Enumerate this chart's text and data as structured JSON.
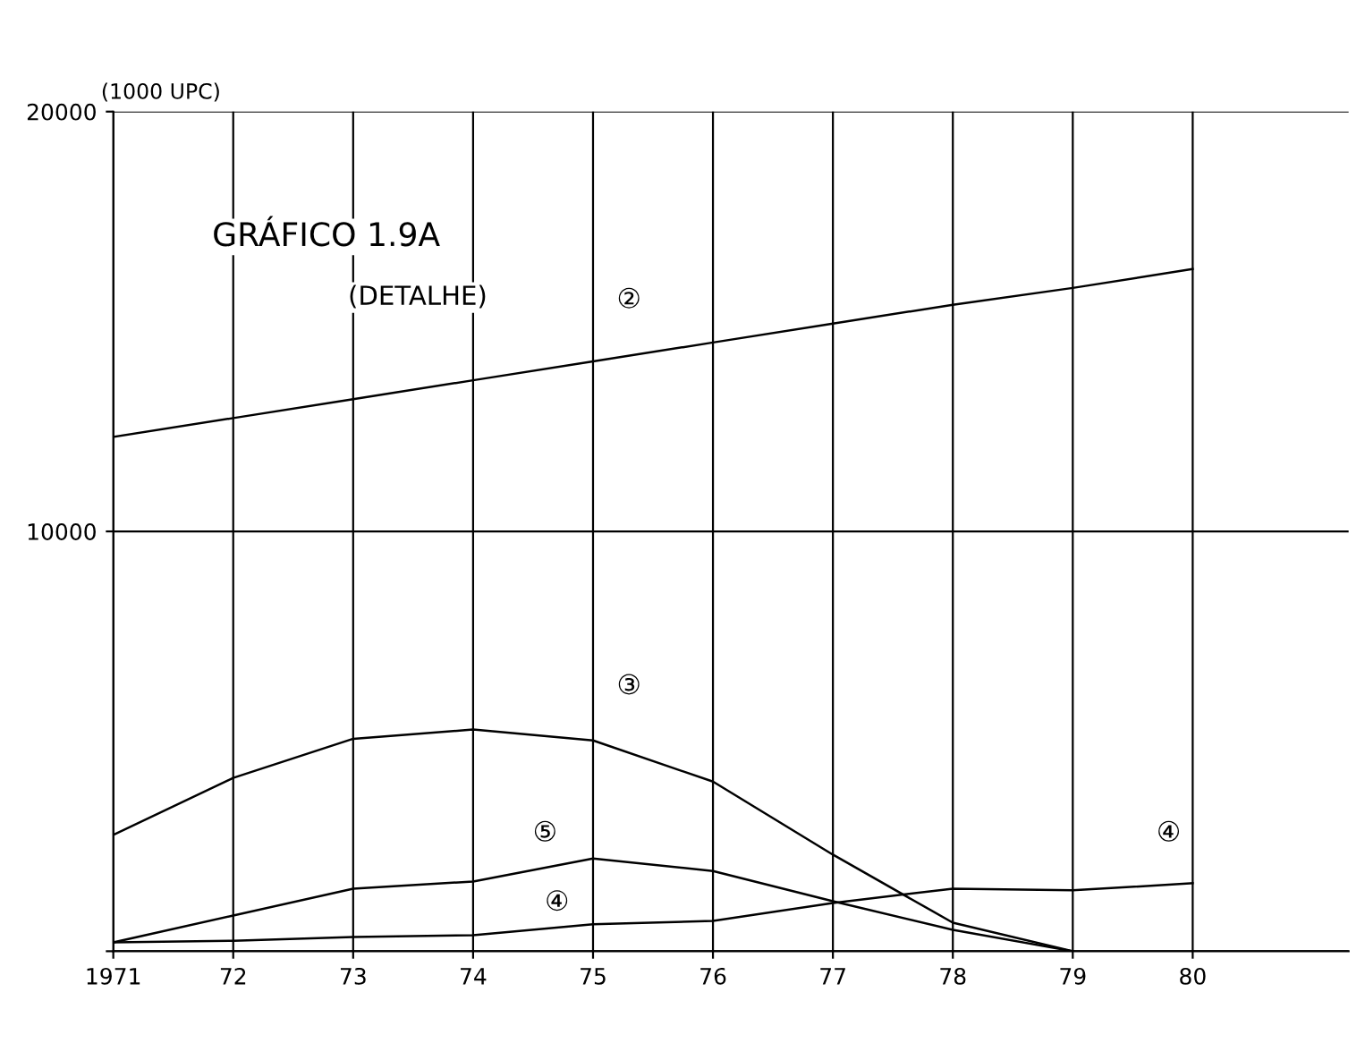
{
  "chart_data": {
    "type": "line",
    "title": "GRÁFICO 1.9A",
    "subtitle": "(DETALHE)",
    "ylabel": "(1000 UPC)",
    "x": [
      1971,
      1972,
      1973,
      1974,
      1975,
      1976,
      1977,
      1978,
      1979,
      1980
    ],
    "series": [
      {
        "color": "#000000",
        "values": [
          12250,
          12700,
          13150,
          13600,
          14050,
          14500,
          14950,
          15400,
          15800,
          16250
        ]
      },
      {
        "color": "#000000",
        "values": [
          2770,
          4130,
          5060,
          5280,
          5020,
          4040,
          2300,
          680,
          0,
          null
        ]
      },
      {
        "color": "#000000",
        "values": [
          210,
          250,
          340,
          380,
          640,
          720,
          1150,
          1490,
          1450,
          1620
        ]
      },
      {
        "color": "#000000",
        "values": [
          210,
          850,
          1490,
          1660,
          2210,
          1910,
          1190,
          510,
          0,
          null
        ]
      }
    ],
    "annotations": [
      {
        "text": "②",
        "x": 1975.3,
        "y": 15500
      },
      {
        "text": "③",
        "x": 1975.3,
        "y": 6300
      },
      {
        "text": "⑤",
        "x": 1974.6,
        "y": 2800
      },
      {
        "text": "④",
        "x": 1974.7,
        "y": 1150
      },
      {
        "text": "④",
        "x": 1979.8,
        "y": 2800
      }
    ],
    "xlim": [
      1971,
      1981.3
    ],
    "xticks": [
      {
        "value": 1971,
        "label": "1971"
      },
      {
        "value": 1972,
        "label": "72"
      },
      {
        "value": 1973,
        "label": "73"
      },
      {
        "value": 1974,
        "label": "74"
      },
      {
        "value": 1975,
        "label": "75"
      },
      {
        "value": 1976,
        "label": "76"
      },
      {
        "value": 1977,
        "label": "77"
      },
      {
        "value": 1978,
        "label": "78"
      },
      {
        "value": 1979,
        "label": "79"
      },
      {
        "value": 1980,
        "label": "80"
      }
    ],
    "ylim": [
      0,
      20000
    ],
    "yticks": [
      {
        "value": 0,
        "label": null
      },
      10000,
      20000
    ],
    "grid": true,
    "marker": "none",
    "line_style": "solid",
    "legend": false
  }
}
